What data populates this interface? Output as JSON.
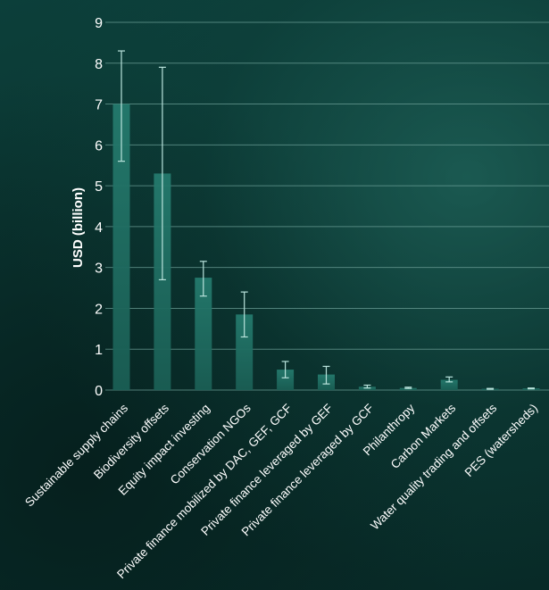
{
  "chart_data": {
    "type": "bar",
    "ylabel": "USD (billion)",
    "ylim": [
      0,
      9
    ],
    "yticks": [
      0,
      1,
      2,
      3,
      4,
      5,
      6,
      7,
      8,
      9
    ],
    "grid": true,
    "categories": [
      "Sustainable supply chains",
      "Biodiversity offsets",
      "Equity impact investing",
      "Conservation NGOs",
      "Private finance mobilized by DAC, GEF, GCF",
      "Private finance leveraged by GEF",
      "Private finance leveraged by GCF",
      "Philanthropy",
      "Carbon Markets",
      "Water quality trading and offsets",
      "PES (watersheds)"
    ],
    "values": [
      7.0,
      5.3,
      2.75,
      1.85,
      0.5,
      0.38,
      0.08,
      0.05,
      0.25,
      0.03,
      0.04
    ],
    "error_low": [
      5.6,
      2.7,
      2.3,
      1.3,
      0.3,
      0.15,
      0.05,
      0.04,
      0.2,
      0.02,
      0.03
    ],
    "error_high": [
      8.3,
      7.9,
      3.15,
      2.4,
      0.7,
      0.58,
      0.12,
      0.07,
      0.32,
      0.04,
      0.05
    ],
    "colors": {
      "bar": "#1f6b60",
      "grid": "#6fa39a",
      "error": "#b9e3dc",
      "text": "#ffffff"
    }
  }
}
